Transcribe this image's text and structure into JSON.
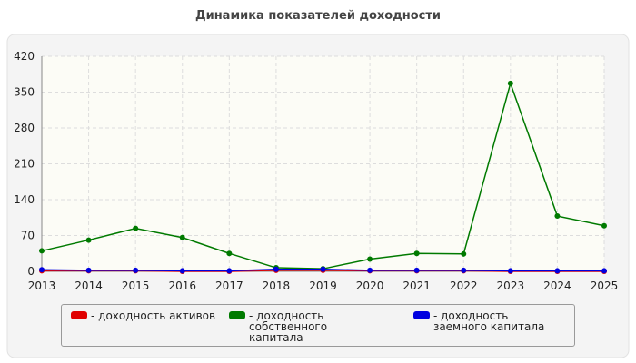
{
  "chart_data": {
    "type": "line",
    "title": "Динамика показателей доходности",
    "categories": [
      "2013",
      "2014",
      "2015",
      "2016",
      "2017",
      "2018",
      "2019",
      "2020",
      "2021",
      "2022",
      "2023",
      "2024",
      "2025"
    ],
    "series": [
      {
        "name": "- доходность активов",
        "color": "#e00000",
        "values": [
          1,
          1,
          1,
          0,
          0,
          2,
          2,
          1,
          1,
          1,
          0,
          0,
          0
        ]
      },
      {
        "name": "- доходность собственного капитала",
        "color": "#007a00",
        "values": [
          40,
          61,
          84,
          66,
          35,
          7,
          5,
          24,
          35,
          34,
          367,
          108,
          89
        ]
      },
      {
        "name": "- доходность заемного капитала",
        "color": "#0000e0",
        "values": [
          3,
          2,
          2,
          1,
          1,
          4,
          4,
          2,
          2,
          2,
          1,
          1,
          1
        ]
      }
    ],
    "ylim": [
      0,
      420
    ],
    "yticks": [
      0,
      70,
      140,
      210,
      280,
      350,
      420
    ],
    "grid": true
  }
}
